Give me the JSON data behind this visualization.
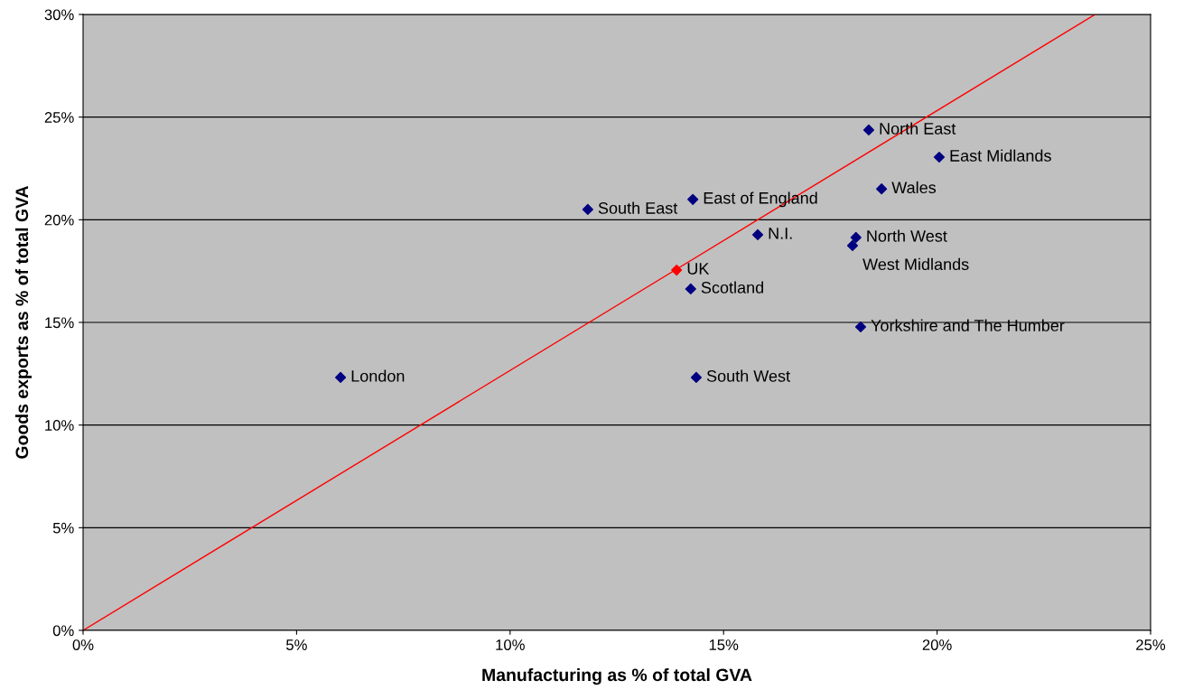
{
  "chart_data": {
    "type": "scatter",
    "xlabel": "Manufacturing as % of total GVA",
    "ylabel": "Goods exports as % of total GVA",
    "xlim": [
      0,
      25
    ],
    "ylim": [
      0,
      30
    ],
    "xticks": [
      {
        "value": 0,
        "label": "0%"
      },
      {
        "value": 5,
        "label": "5%"
      },
      {
        "value": 10,
        "label": "10%"
      },
      {
        "value": 15,
        "label": "15%"
      },
      {
        "value": 20,
        "label": "20%"
      },
      {
        "value": 25,
        "label": "25%"
      }
    ],
    "yticks": [
      {
        "value": 0,
        "label": "0%"
      },
      {
        "value": 5,
        "label": "5%"
      },
      {
        "value": 10,
        "label": "10%"
      },
      {
        "value": 15,
        "label": "15%"
      },
      {
        "value": 20,
        "label": "20%"
      },
      {
        "value": 25,
        "label": "25%"
      },
      {
        "value": 30,
        "label": "30%"
      }
    ],
    "grid": "y",
    "marker": "diamond",
    "legend": false,
    "series": [
      {
        "color": "#000080",
        "x": [
          18.4,
          20.05,
          18.7,
          14.28,
          11.82,
          15.8,
          18.1,
          18.02,
          14.23,
          18.21,
          6.03,
          14.36
        ],
        "values": [
          24.37,
          23.05,
          21.5,
          20.99,
          20.5,
          19.27,
          19.14,
          18.74,
          16.63,
          14.78,
          12.32,
          12.32
        ],
        "value_labels": [
          "North East",
          "East Midlands",
          "Wales",
          "East of England",
          "South East",
          "N.I.",
          "North West",
          "West Midlands",
          "Scotland",
          "Yorkshire and The Humber",
          "London",
          "South West"
        ]
      },
      {
        "color": "#ff0000",
        "x": [
          13.9
        ],
        "values": [
          17.55
        ],
        "value_labels": [
          "UK"
        ]
      },
      {
        "type": "line",
        "marker": "none",
        "color": "#ff0000",
        "x": [
          0,
          23.7
        ],
        "values": [
          0,
          30
        ]
      }
    ]
  }
}
